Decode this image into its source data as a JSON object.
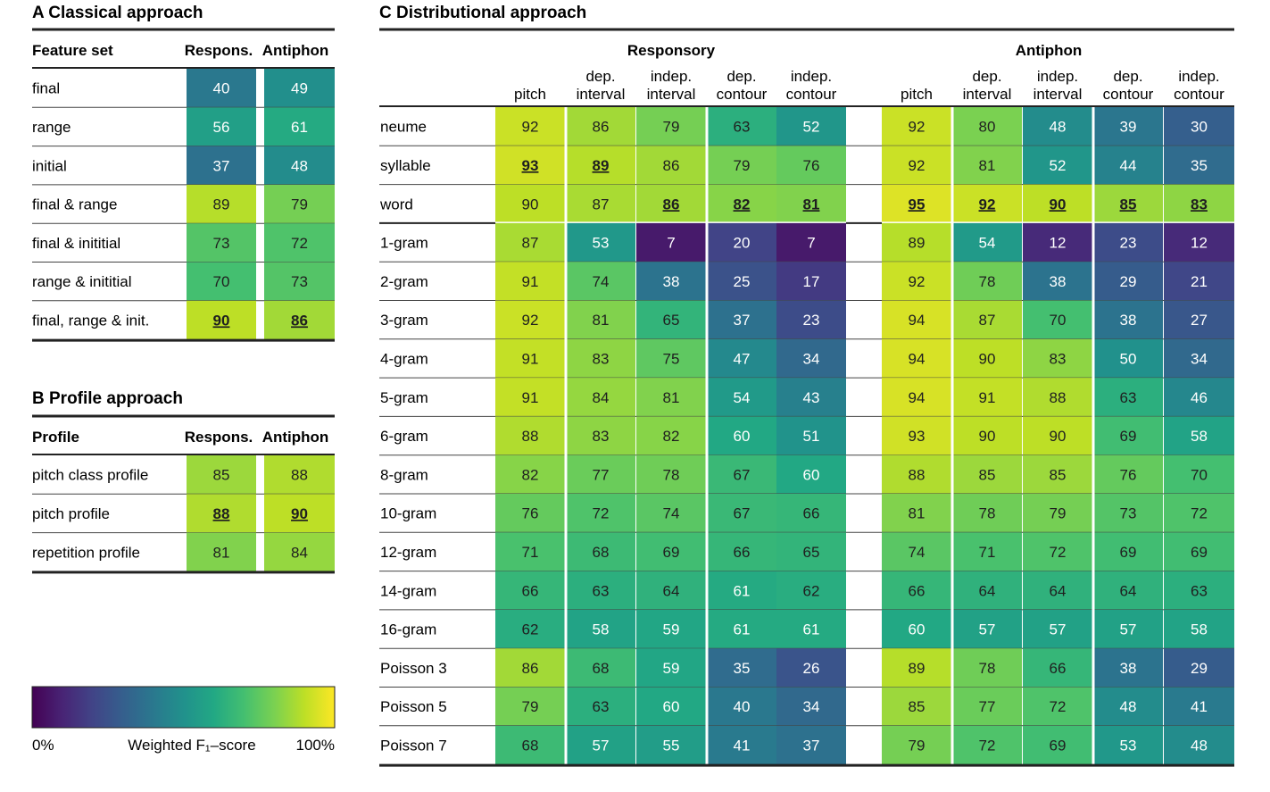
{
  "panel_a": {
    "title": "A Classical approach",
    "header": {
      "label": "Feature set",
      "col1": "Respons.",
      "col2": "Antiphon"
    },
    "rows": [
      {
        "label": "final",
        "values": [
          40,
          49
        ]
      },
      {
        "label": "range",
        "values": [
          56,
          61
        ]
      },
      {
        "label": "initial",
        "values": [
          37,
          48
        ]
      },
      {
        "label": "final & range",
        "values": [
          89,
          79
        ]
      },
      {
        "label": "final & inititial",
        "values": [
          73,
          72
        ]
      },
      {
        "label": "range & inititial",
        "values": [
          70,
          73
        ]
      },
      {
        "label": "final, range & init.",
        "values": [
          90,
          86
        ]
      }
    ],
    "best": [
      [
        6,
        0
      ],
      [
        6,
        1
      ]
    ]
  },
  "panel_b": {
    "title": "B Profile approach",
    "header": {
      "label": "Profile",
      "col1": "Respons.",
      "col2": "Antiphon"
    },
    "rows": [
      {
        "label": "pitch class profile",
        "values": [
          85,
          88
        ]
      },
      {
        "label": "pitch profile",
        "values": [
          88,
          90
        ]
      },
      {
        "label": "repetition profile",
        "values": [
          81,
          84
        ]
      }
    ],
    "best": [
      [
        1,
        0
      ],
      [
        1,
        1
      ]
    ]
  },
  "panel_c": {
    "title": "C Distributional approach",
    "groups": [
      "Responsory",
      "Antiphon"
    ],
    "columns": [
      [
        "pitch"
      ],
      [
        "dep.",
        "interval"
      ],
      [
        "indep.",
        "interval"
      ],
      [
        "dep.",
        "contour"
      ],
      [
        "indep.",
        "contour"
      ]
    ],
    "rows": [
      {
        "label": "neume",
        "values": [
          92,
          86,
          79,
          63,
          52,
          92,
          80,
          48,
          39,
          30
        ]
      },
      {
        "label": "syllable",
        "values": [
          93,
          89,
          86,
          79,
          76,
          92,
          81,
          52,
          44,
          35
        ]
      },
      {
        "label": "word",
        "values": [
          90,
          87,
          86,
          82,
          81,
          95,
          92,
          90,
          85,
          83
        ]
      },
      {
        "label": "1-gram",
        "values": [
          87,
          53,
          7,
          20,
          7,
          89,
          54,
          12,
          23,
          12
        ]
      },
      {
        "label": "2-gram",
        "values": [
          91,
          74,
          38,
          25,
          17,
          92,
          78,
          38,
          29,
          21
        ]
      },
      {
        "label": "3-gram",
        "values": [
          92,
          81,
          65,
          37,
          23,
          94,
          87,
          70,
          38,
          27
        ]
      },
      {
        "label": "4-gram",
        "values": [
          91,
          83,
          75,
          47,
          34,
          94,
          90,
          83,
          50,
          34
        ]
      },
      {
        "label": "5-gram",
        "values": [
          91,
          84,
          81,
          54,
          43,
          94,
          91,
          88,
          63,
          46
        ]
      },
      {
        "label": "6-gram",
        "values": [
          88,
          83,
          82,
          60,
          51,
          93,
          90,
          90,
          69,
          58
        ]
      },
      {
        "label": "8-gram",
        "values": [
          82,
          77,
          78,
          67,
          60,
          88,
          85,
          85,
          76,
          70
        ]
      },
      {
        "label": "10-gram",
        "values": [
          76,
          72,
          74,
          67,
          66,
          81,
          78,
          79,
          73,
          72
        ]
      },
      {
        "label": "12-gram",
        "values": [
          71,
          68,
          69,
          66,
          65,
          74,
          71,
          72,
          69,
          69
        ]
      },
      {
        "label": "14-gram",
        "values": [
          66,
          63,
          64,
          61,
          62,
          66,
          64,
          64,
          64,
          63
        ]
      },
      {
        "label": "16-gram",
        "values": [
          62,
          58,
          59,
          61,
          61,
          60,
          57,
          57,
          57,
          58
        ]
      },
      {
        "label": "Poisson 3",
        "values": [
          86,
          68,
          59,
          35,
          26,
          89,
          78,
          66,
          38,
          29
        ]
      },
      {
        "label": "Poisson 5",
        "values": [
          79,
          63,
          60,
          40,
          34,
          85,
          77,
          72,
          48,
          41
        ]
      },
      {
        "label": "Poisson 7",
        "values": [
          68,
          57,
          55,
          41,
          37,
          79,
          72,
          69,
          53,
          48
        ]
      }
    ],
    "best": [
      [
        1,
        0
      ],
      [
        1,
        1
      ],
      [
        2,
        2
      ],
      [
        2,
        3
      ],
      [
        2,
        4
      ],
      [
        2,
        5
      ],
      [
        2,
        6
      ],
      [
        2,
        7
      ],
      [
        2,
        8
      ],
      [
        2,
        9
      ]
    ]
  },
  "colorbar": {
    "min_label": "0%",
    "max_label": "100%",
    "title": "Weighted F₁–score",
    "colormap": "viridis"
  },
  "colors": {
    "dark_text": "#1f1f1f",
    "light_text": "#ffffff",
    "rule": "#222222"
  }
}
